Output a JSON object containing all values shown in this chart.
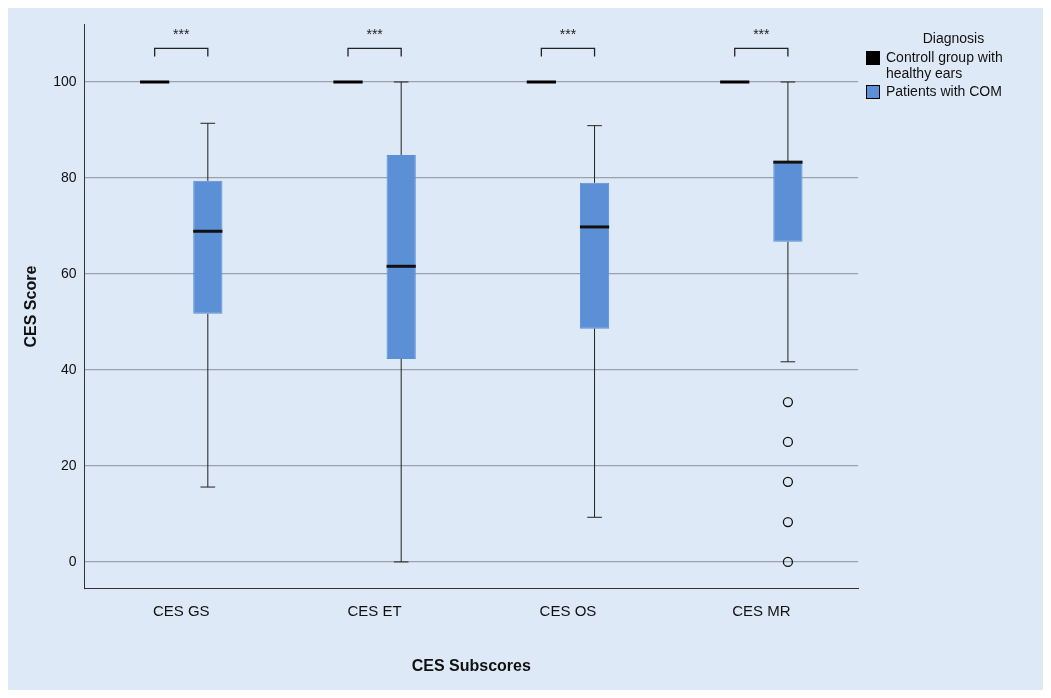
{
  "chart_data": {
    "type": "box",
    "xlabel": "CES Subscores",
    "ylabel": "CES Score",
    "legend_title": "Diagnosis",
    "legend": "top right",
    "grid": "y",
    "categories": [
      "CES GS",
      "CES ET",
      "CES OS",
      "CES MR"
    ],
    "ylim": [
      -5.6,
      112
    ],
    "yticks": [
      0,
      20,
      40,
      60,
      80,
      100
    ],
    "series": [
      {
        "name": "Controll group with healthy ears",
        "color": "#000000",
        "boxes": [
          {
            "low": 100,
            "q1": 100,
            "median": 100,
            "q3": 100,
            "high": 100
          },
          {
            "low": 100,
            "q1": 100,
            "median": 100,
            "q3": 100,
            "high": 100
          },
          {
            "low": 100,
            "q1": 100,
            "median": 100,
            "q3": 100,
            "high": 100
          },
          {
            "low": 100,
            "q1": 100,
            "median": 100,
            "q3": 100,
            "high": 100
          }
        ]
      },
      {
        "name": "Patients with COM",
        "color": "#5b8fd6",
        "boxes": [
          {
            "low": 15.6,
            "q1": 51.7,
            "median": 68.9,
            "q3": 79.4,
            "high": 91.4
          },
          {
            "low": 0,
            "q1": 42.3,
            "median": 61.6,
            "q3": 84.8,
            "high": 100
          },
          {
            "low": 9.3,
            "q1": 48.6,
            "median": 69.8,
            "q3": 79,
            "high": 90.9
          },
          {
            "low": 41.7,
            "q1": 66.7,
            "median": 83.3,
            "q3": 83.3,
            "high": 100,
            "outliers": [
              33.3,
              25,
              16.7,
              8.3,
              0
            ]
          }
        ]
      }
    ],
    "annotations": [
      "***",
      "***",
      "***",
      "***"
    ]
  }
}
